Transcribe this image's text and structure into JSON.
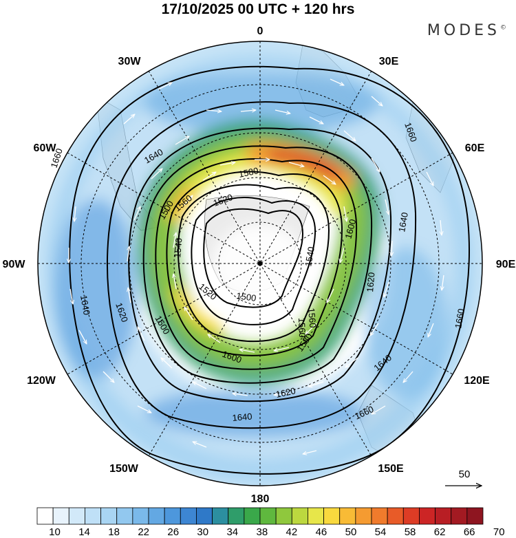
{
  "title": "17/10/2025  00 UTC  + 120 hrs",
  "brand": {
    "name": "MODES",
    "mark": "©"
  },
  "map": {
    "projection": "south-polar-stereographic",
    "meridian_labels": {
      "m0": "0",
      "m30e": "30E",
      "m60e": "60E",
      "m90e": "90E",
      "m120e": "120E",
      "m150e": "150E",
      "m180": "180",
      "m150w": "150W",
      "m120w": "120W",
      "m90w": "90W",
      "m60w": "60W",
      "m30w": "30W"
    },
    "contours": [
      "1500",
      "1520",
      "1540",
      "1560",
      "1580",
      "1600",
      "1620",
      "1640",
      "1660"
    ],
    "contour_labels": {
      "a": "1660",
      "b": "1640",
      "c": "1580",
      "d": "1560",
      "e": "1600",
      "f": "1620",
      "g": "1640",
      "h": "1660",
      "i": "1500",
      "j": "1520",
      "k": "1540",
      "l": "1540",
      "m": "1560",
      "n": "1600",
      "o": "1620",
      "p": "1520",
      "q": "1500",
      "r": "1640",
      "s": "1620",
      "t": "1600",
      "u": "1580",
      "v": "1560",
      "w": "1620",
      "x": "1640",
      "y": "1660"
    }
  },
  "vector_key": {
    "value": "50"
  },
  "colorbar": {
    "tick_labels": [
      "10",
      "14",
      "18",
      "22",
      "26",
      "30",
      "34",
      "38",
      "42",
      "46",
      "50",
      "54",
      "58",
      "62",
      "66",
      "70"
    ],
    "colors": [
      "#ffffff",
      "#e8f3fc",
      "#d2e9f9",
      "#bfe0f7",
      "#a9d5f3",
      "#92c8ef",
      "#7ab9ea",
      "#63a8e3",
      "#4d97dc",
      "#3d86d3",
      "#2f79c8",
      "#2c8fa0",
      "#2f9d6a",
      "#3aa84a",
      "#5fb83e",
      "#8fc83d",
      "#bcd83f",
      "#e7e64a",
      "#f9d93e",
      "#f8bb36",
      "#f59b31",
      "#f07b2c",
      "#e85b28",
      "#dd3c25",
      "#cc2525",
      "#b81e24",
      "#a31a22",
      "#8e1520"
    ]
  }
}
